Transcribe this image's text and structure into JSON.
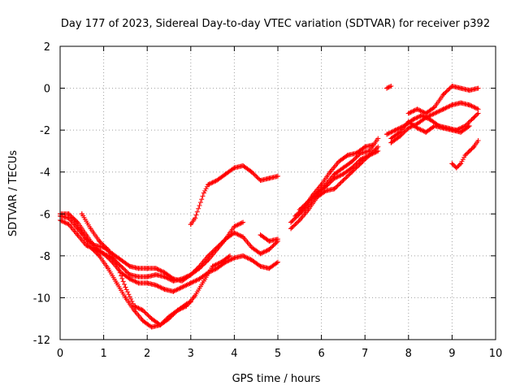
{
  "chart_data": {
    "type": "scatter",
    "title": "Day 177 of 2023, Sidereal Day-to-day VTEC variation (SDTVAR) for receiver p392",
    "xlabel": "GPS time / hours",
    "ylabel": "SDTVAR / TECUs",
    "xlim": [
      0,
      10
    ],
    "ylim": [
      -12,
      2
    ],
    "xticks": [
      "0",
      "1",
      "2",
      "3",
      "4",
      "5",
      "6",
      "7",
      "8",
      "9",
      "10"
    ],
    "yticks": [
      "2",
      "0",
      "-2",
      "-4",
      "-6",
      "-8",
      "-10",
      "-12"
    ],
    "grid": true,
    "marker": "+",
    "series_color": "#ff0000",
    "series": [
      {
        "segments": [
          [
            [
              0.0,
              -6.0
            ],
            [
              0.2,
              -6.0
            ],
            [
              0.4,
              -6.4
            ],
            [
              0.6,
              -7.0
            ],
            [
              0.8,
              -7.6
            ],
            [
              1.0,
              -7.9
            ],
            [
              1.2,
              -8.1
            ],
            [
              1.4,
              -8.5
            ],
            [
              1.6,
              -8.9
            ],
            [
              1.8,
              -9.0
            ],
            [
              2.0,
              -9.0
            ],
            [
              2.2,
              -8.9
            ],
            [
              2.4,
              -9.0
            ],
            [
              2.6,
              -9.2
            ],
            [
              2.8,
              -9.1
            ],
            [
              3.0,
              -8.9
            ],
            [
              3.2,
              -8.6
            ],
            [
              3.4,
              -8.2
            ],
            [
              3.6,
              -7.7
            ],
            [
              3.8,
              -7.2
            ],
            [
              4.0,
              -6.6
            ],
            [
              4.2,
              -6.4
            ]
          ],
          [
            [
              4.6,
              -7.0
            ],
            [
              4.8,
              -7.3
            ],
            [
              5.0,
              -7.2
            ]
          ]
        ]
      },
      {
        "segments": [
          [
            [
              0.0,
              -6.1
            ],
            [
              0.2,
              -6.2
            ],
            [
              0.4,
              -6.7
            ],
            [
              0.6,
              -7.2
            ],
            [
              0.8,
              -7.5
            ],
            [
              1.0,
              -7.6
            ],
            [
              1.2,
              -7.9
            ],
            [
              1.4,
              -8.2
            ],
            [
              1.6,
              -8.5
            ],
            [
              1.8,
              -8.6
            ],
            [
              2.0,
              -8.6
            ],
            [
              2.2,
              -8.6
            ],
            [
              2.4,
              -8.8
            ],
            [
              2.6,
              -9.1
            ],
            [
              2.8,
              -9.2
            ],
            [
              3.0,
              -8.9
            ],
            [
              3.2,
              -8.5
            ],
            [
              3.4,
              -8.0
            ],
            [
              3.6,
              -7.6
            ],
            [
              3.8,
              -7.2
            ],
            [
              4.0,
              -6.9
            ],
            [
              4.2,
              -7.1
            ],
            [
              4.4,
              -7.6
            ],
            [
              4.6,
              -7.9
            ],
            [
              4.8,
              -7.7
            ],
            [
              5.0,
              -7.3
            ]
          ]
        ]
      },
      {
        "segments": [
          [
            [
              0.0,
              -6.3
            ],
            [
              0.2,
              -6.5
            ],
            [
              0.4,
              -7.0
            ],
            [
              0.6,
              -7.5
            ],
            [
              0.8,
              -7.7
            ],
            [
              1.0,
              -7.9
            ],
            [
              1.2,
              -8.3
            ],
            [
              1.4,
              -8.8
            ],
            [
              1.6,
              -9.1
            ],
            [
              1.8,
              -9.3
            ],
            [
              2.0,
              -9.3
            ],
            [
              2.2,
              -9.4
            ],
            [
              2.4,
              -9.6
            ],
            [
              2.6,
              -9.7
            ],
            [
              2.8,
              -9.5
            ],
            [
              3.0,
              -9.3
            ],
            [
              3.2,
              -9.1
            ],
            [
              3.4,
              -8.8
            ],
            [
              3.6,
              -8.6
            ],
            [
              3.8,
              -8.3
            ],
            [
              4.0,
              -8.1
            ],
            [
              4.2,
              -8.0
            ],
            [
              4.4,
              -8.2
            ],
            [
              4.6,
              -8.5
            ],
            [
              4.8,
              -8.6
            ],
            [
              5.0,
              -8.3
            ]
          ]
        ]
      },
      {
        "segments": [
          [
            [
              0.5,
              -6.0
            ],
            [
              0.7,
              -6.7
            ],
            [
              0.9,
              -7.3
            ],
            [
              1.1,
              -7.7
            ],
            [
              1.3,
              -8.4
            ],
            [
              1.5,
              -9.5
            ],
            [
              1.7,
              -10.4
            ],
            [
              1.9,
              -10.6
            ],
            [
              2.1,
              -11.0
            ],
            [
              2.3,
              -11.3
            ],
            [
              2.5,
              -11.0
            ],
            [
              2.7,
              -10.6
            ],
            [
              2.9,
              -10.4
            ],
            [
              3.1,
              -9.9
            ],
            [
              3.3,
              -9.2
            ],
            [
              3.5,
              -8.5
            ],
            [
              3.7,
              -8.3
            ],
            [
              3.9,
              -8.0
            ]
          ]
        ]
      },
      {
        "segments": [
          [
            [
              0.3,
              -6.2
            ],
            [
              0.5,
              -6.9
            ],
            [
              0.7,
              -7.6
            ],
            [
              0.9,
              -8.0
            ],
            [
              1.1,
              -8.6
            ],
            [
              1.3,
              -9.3
            ],
            [
              1.5,
              -10.0
            ],
            [
              1.7,
              -10.6
            ],
            [
              1.9,
              -11.1
            ],
            [
              2.1,
              -11.4
            ],
            [
              2.3,
              -11.3
            ],
            [
              2.5,
              -10.9
            ],
            [
              2.7,
              -10.6
            ],
            [
              2.9,
              -10.3
            ],
            [
              3.0,
              -10.2
            ]
          ]
        ]
      },
      {
        "segments": [
          [
            [
              3.0,
              -6.5
            ],
            [
              3.1,
              -6.2
            ],
            [
              3.2,
              -5.6
            ],
            [
              3.3,
              -5.0
            ],
            [
              3.4,
              -4.6
            ],
            [
              3.6,
              -4.4
            ],
            [
              3.8,
              -4.1
            ],
            [
              4.0,
              -3.8
            ],
            [
              4.2,
              -3.7
            ],
            [
              4.4,
              -4.0
            ],
            [
              4.6,
              -4.4
            ],
            [
              4.8,
              -4.3
            ],
            [
              5.0,
              -4.2
            ]
          ]
        ]
      },
      {
        "segments": [
          [
            [
              5.3,
              -6.4
            ],
            [
              5.5,
              -6.0
            ],
            [
              5.7,
              -5.6
            ],
            [
              5.9,
              -5.1
            ],
            [
              6.1,
              -4.6
            ],
            [
              6.3,
              -4.1
            ],
            [
              6.5,
              -3.8
            ],
            [
              6.7,
              -3.5
            ],
            [
              6.9,
              -3.1
            ],
            [
              7.1,
              -3.0
            ],
            [
              7.3,
              -2.4
            ]
          ],
          [
            [
              7.5,
              -2.2
            ],
            [
              7.7,
              -2.0
            ],
            [
              7.9,
              -1.8
            ],
            [
              8.1,
              -1.5
            ],
            [
              8.3,
              -1.3
            ],
            [
              8.5,
              -1.5
            ],
            [
              8.7,
              -1.8
            ],
            [
              8.9,
              -1.9
            ],
            [
              9.1,
              -2.0
            ],
            [
              9.3,
              -1.8
            ],
            [
              9.5,
              -1.4
            ],
            [
              9.6,
              -1.2
            ]
          ]
        ]
      },
      {
        "segments": [
          [
            [
              5.3,
              -6.7
            ],
            [
              5.5,
              -6.3
            ],
            [
              5.7,
              -5.8
            ],
            [
              5.9,
              -5.2
            ],
            [
              6.1,
              -4.9
            ],
            [
              6.3,
              -4.8
            ],
            [
              6.5,
              -4.4
            ],
            [
              6.7,
              -4.0
            ],
            [
              6.9,
              -3.6
            ],
            [
              7.1,
              -3.2
            ],
            [
              7.3,
              -3.0
            ]
          ],
          [
            [
              7.6,
              -2.6
            ],
            [
              7.8,
              -2.3
            ],
            [
              8.0,
              -1.9
            ],
            [
              8.2,
              -1.7
            ],
            [
              8.4,
              -1.4
            ],
            [
              8.6,
              -1.2
            ],
            [
              8.8,
              -1.0
            ],
            [
              9.0,
              -0.8
            ],
            [
              9.2,
              -0.7
            ],
            [
              9.4,
              -0.8
            ],
            [
              9.6,
              -1.0
            ]
          ]
        ]
      },
      {
        "segments": [
          [
            [
              5.4,
              -6.1
            ],
            [
              5.6,
              -5.7
            ],
            [
              5.8,
              -5.1
            ],
            [
              6.0,
              -4.6
            ],
            [
              6.2,
              -4.0
            ],
            [
              6.4,
              -3.5
            ],
            [
              6.6,
              -3.2
            ],
            [
              6.8,
              -3.1
            ],
            [
              7.0,
              -2.8
            ],
            [
              7.2,
              -2.7
            ]
          ],
          [
            [
              7.5,
              0.0
            ],
            [
              7.6,
              0.1
            ]
          ],
          [
            [
              8.0,
              -1.2
            ],
            [
              8.2,
              -1.0
            ],
            [
              8.4,
              -1.2
            ],
            [
              8.6,
              -0.9
            ],
            [
              8.8,
              -0.3
            ],
            [
              9.0,
              0.1
            ],
            [
              9.2,
              0.0
            ],
            [
              9.4,
              -0.1
            ],
            [
              9.6,
              0.0
            ]
          ]
        ]
      },
      {
        "segments": [
          [
            [
              5.5,
              -5.8
            ],
            [
              5.7,
              -5.4
            ],
            [
              5.9,
              -5.0
            ],
            [
              6.1,
              -4.7
            ],
            [
              6.3,
              -4.3
            ],
            [
              6.5,
              -4.1
            ],
            [
              6.7,
              -3.8
            ],
            [
              6.9,
              -3.4
            ],
            [
              7.1,
              -3.2
            ],
            [
              7.3,
              -2.8
            ]
          ],
          [
            [
              7.6,
              -2.4
            ],
            [
              7.8,
              -2.1
            ],
            [
              8.0,
              -1.6
            ],
            [
              8.2,
              -1.9
            ],
            [
              8.4,
              -2.1
            ],
            [
              8.6,
              -1.8
            ],
            [
              8.8,
              -1.9
            ],
            [
              9.0,
              -2.0
            ],
            [
              9.2,
              -2.1
            ],
            [
              9.4,
              -1.8
            ]
          ]
        ]
      },
      {
        "segments": [
          [
            [
              9.0,
              -3.6
            ],
            [
              9.1,
              -3.8
            ],
            [
              9.2,
              -3.6
            ],
            [
              9.3,
              -3.2
            ],
            [
              9.4,
              -3.0
            ],
            [
              9.5,
              -2.8
            ],
            [
              9.6,
              -2.5
            ]
          ]
        ]
      }
    ]
  }
}
